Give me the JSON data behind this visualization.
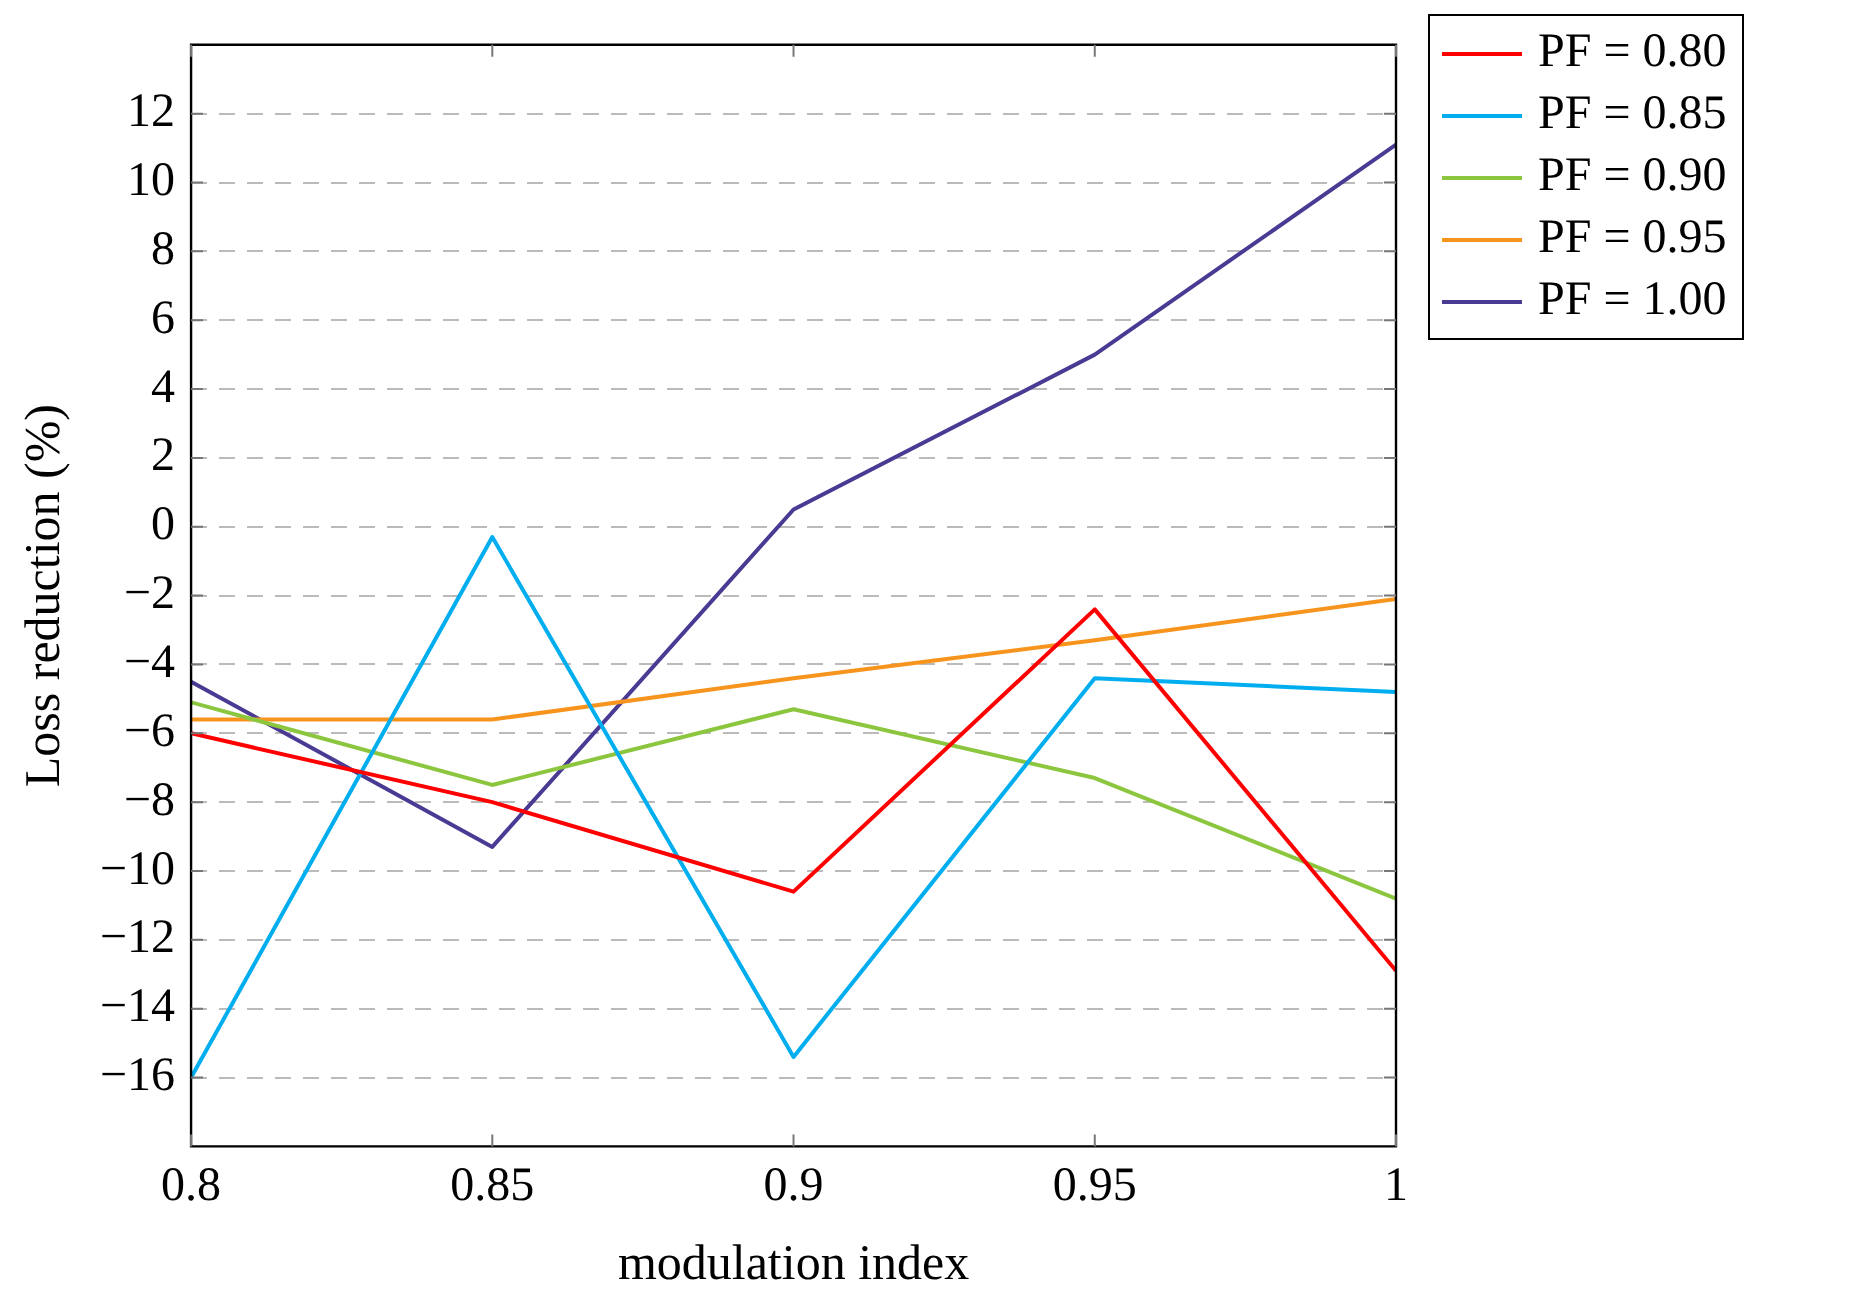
{
  "chart_data": {
    "type": "line",
    "xlabel": "modulation index",
    "ylabel": "Loss reduction (%)",
    "x": [
      0.8,
      0.85,
      0.9,
      0.95,
      1
    ],
    "xlim": [
      0.8,
      1
    ],
    "xticks": [
      0.8,
      0.85,
      0.9,
      0.95,
      1
    ],
    "ylim": [
      -18,
      14
    ],
    "yticks": [
      -16,
      -14,
      -12,
      -10,
      -8,
      -6,
      -4,
      -2,
      0,
      2,
      4,
      6,
      8,
      10,
      12
    ],
    "grid": "y",
    "legend": "top right",
    "marker": "none",
    "line_style": "solid",
    "series": [
      {
        "name": "PF = 0.80",
        "color": "#ff0000",
        "values": [
          -6,
          -8,
          -10.6,
          -2.4,
          -12.9
        ]
      },
      {
        "name": "PF = 0.85",
        "color": "#00aeef",
        "values": [
          -16,
          -0.3,
          -15.4,
          -4.4,
          -4.8
        ]
      },
      {
        "name": "PF = 0.90",
        "color": "#8cc63f",
        "values": [
          -5.1,
          -7.5,
          -5.3,
          -7.3,
          -10.8
        ]
      },
      {
        "name": "PF = 0.95",
        "color": "#f7941d",
        "values": [
          -5.6,
          -5.6,
          -4.4,
          -3.3,
          -2.1
        ]
      },
      {
        "name": "PF = 1.00",
        "color": "#4b3a94",
        "values": [
          -4.5,
          -9.3,
          0.5,
          5.0,
          11.1
        ]
      }
    ]
  }
}
